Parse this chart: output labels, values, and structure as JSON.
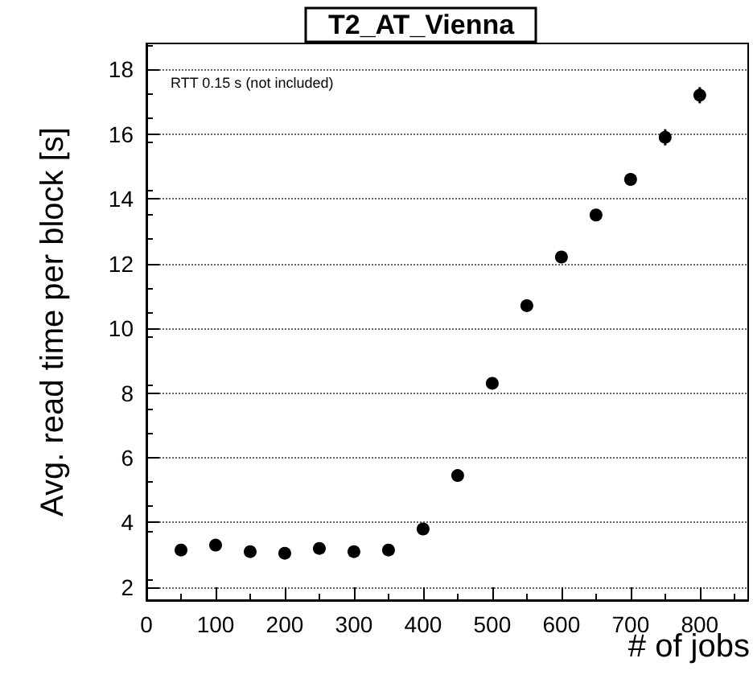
{
  "chart_data": {
    "type": "scatter",
    "title": "T2_AT_Vienna",
    "xlabel": "# of jobs",
    "ylabel": "Avg. read time per block [s]",
    "annotations": [
      "RTT 0.15 s (not included)"
    ],
    "x": [
      50,
      100,
      150,
      200,
      250,
      300,
      350,
      400,
      450,
      500,
      550,
      600,
      650,
      700,
      750,
      800
    ],
    "values": [
      3.15,
      3.3,
      3.1,
      3.05,
      3.2,
      3.1,
      3.15,
      3.8,
      5.45,
      8.3,
      10.7,
      12.2,
      13.5,
      14.6,
      15.9,
      17.2
    ],
    "errors": [
      null,
      null,
      null,
      null,
      null,
      null,
      null,
      null,
      null,
      null,
      0.1,
      0.15,
      0.15,
      0.2,
      0.25,
      0.25
    ],
    "color": "#000000",
    "marker": "circle",
    "xlim": [
      0,
      870
    ],
    "xticks": [
      0,
      100,
      200,
      300,
      400,
      500,
      600,
      700,
      800
    ],
    "ylim": [
      1.6,
      18.8
    ],
    "yticks": [
      2,
      4,
      6,
      8,
      10,
      12,
      14,
      16,
      18
    ],
    "grid": "y"
  }
}
